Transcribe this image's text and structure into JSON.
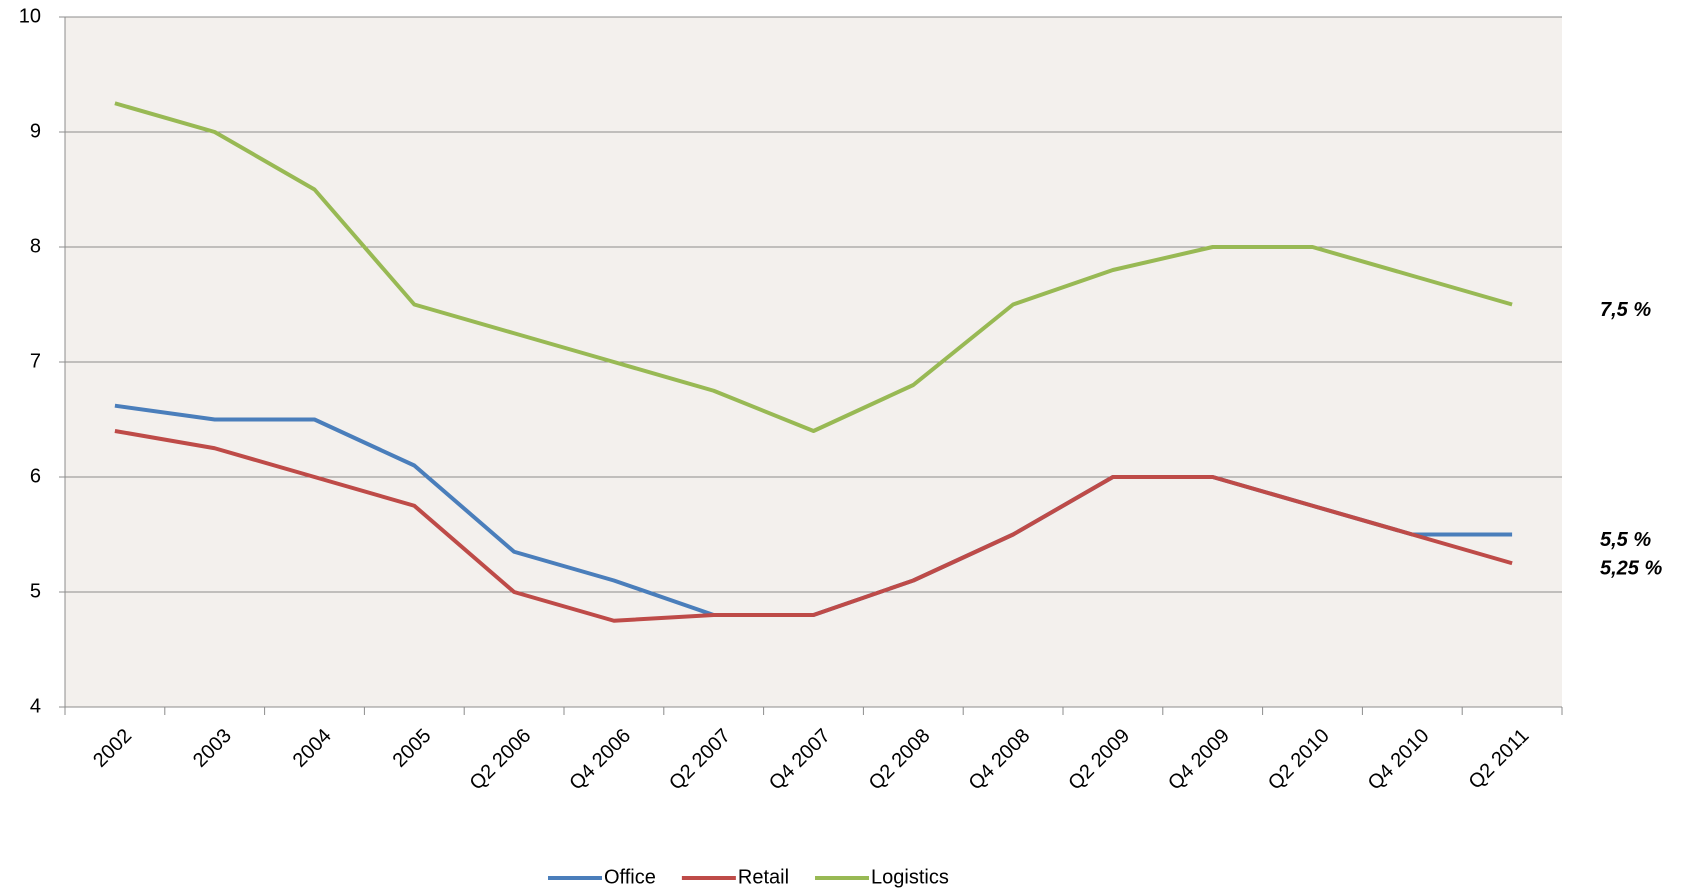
{
  "chart_data": {
    "type": "line",
    "categories": [
      "2002",
      "2003",
      "2004",
      "2005",
      "Q2 2006",
      "Q4 2006",
      "Q2 2007",
      "Q4 2007",
      "Q2 2008",
      "Q4 2008",
      "Q2 2009",
      "Q4 2009",
      "Q2 2010",
      "Q4 2010",
      "Q2 2011"
    ],
    "series": [
      {
        "name": "Office",
        "color": "#4a7ebb",
        "values": [
          6.62,
          6.5,
          6.5,
          6.1,
          5.35,
          5.1,
          4.8,
          4.8,
          5.1,
          5.5,
          6.0,
          6.0,
          5.75,
          5.5,
          5.5
        ]
      },
      {
        "name": "Retail",
        "color": "#be4b48",
        "values": [
          6.4,
          6.25,
          6.0,
          5.75,
          5.0,
          4.75,
          4.8,
          4.8,
          5.1,
          5.5,
          6.0,
          6.0,
          5.75,
          5.5,
          5.25
        ]
      },
      {
        "name": "Logistics",
        "color": "#98b954",
        "values": [
          9.25,
          9.0,
          8.5,
          7.5,
          7.25,
          7.0,
          6.75,
          6.4,
          6.8,
          7.5,
          7.8,
          8.0,
          8.0,
          7.75,
          7.5
        ]
      }
    ],
    "annotations": [
      {
        "text": "7,5 %",
        "value": 7.5
      },
      {
        "text": "5,5 %",
        "value": 5.5
      },
      {
        "text": "5,25 %",
        "value": 5.25
      }
    ],
    "ylim": [
      4,
      10
    ],
    "yticks": [
      4,
      5,
      6,
      7,
      8,
      9,
      10
    ],
    "grid": true,
    "legend": "bottom"
  }
}
